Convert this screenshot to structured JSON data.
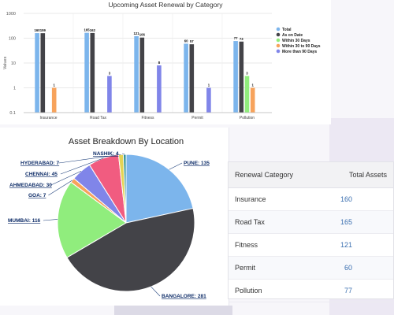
{
  "bar_chart": {
    "chart_data": {
      "type": "bar",
      "title": "Upcoming Asset Renewal by Category",
      "ylabel": "Values",
      "yscale": "log",
      "ylim": [
        0.1,
        1000
      ],
      "yticks": [
        "1000",
        "100",
        "10",
        "1",
        "0.1"
      ],
      "categories": [
        "Insurance",
        "Road Tax",
        "Fitness",
        "Permit",
        "Pollution"
      ],
      "series": [
        {
          "name": "Total",
          "color": "#7cb5ec",
          "values": [
            160,
            165,
            121,
            60,
            77
          ]
        },
        {
          "name": "As on Date",
          "color": "#434348",
          "values": [
            159,
            162,
            106,
            57,
            73
          ]
        },
        {
          "name": "Within 30 Days",
          "color": "#90ed7d",
          "values": [
            null,
            null,
            null,
            null,
            3
          ]
        },
        {
          "name": "Within 30 to 90 Days",
          "color": "#f7a35c",
          "values": [
            1,
            null,
            null,
            null,
            1
          ]
        },
        {
          "name": "More than 90 Days",
          "color": "#8085e9",
          "values": [
            null,
            3,
            8,
            1,
            null
          ]
        }
      ],
      "legend_position": "right",
      "grid": true
    }
  },
  "pie_chart": {
    "chart_data": {
      "type": "pie",
      "title": "Asset Breakdown By Location",
      "slices": [
        {
          "label": "PUNE",
          "value": 135,
          "color": "#7cb5ec"
        },
        {
          "label": "BANGALORE",
          "value": 281,
          "color": "#434348"
        },
        {
          "label": "MUMBAI",
          "value": 116,
          "color": "#90ed7d"
        },
        {
          "label": "GOA",
          "value": 7,
          "color": "#f7a35c"
        },
        {
          "label": "AHMEDABAD",
          "value": 30,
          "color": "#8085e9"
        },
        {
          "label": "CHENNAI",
          "value": 45,
          "color": "#f15c80"
        },
        {
          "label": "HYDERABAD",
          "value": 7,
          "color": "#e4d354"
        },
        {
          "label": "NASHIK",
          "value": 4,
          "color": "#2b908f"
        }
      ]
    }
  },
  "table": {
    "headers": [
      "Renewal Category",
      "Total Assets"
    ],
    "rows": [
      [
        "Insurance",
        "160"
      ],
      [
        "Road Tax",
        "165"
      ],
      [
        "Fitness",
        "121"
      ],
      [
        "Permit",
        "60"
      ],
      [
        "Pollution",
        "77"
      ]
    ]
  }
}
